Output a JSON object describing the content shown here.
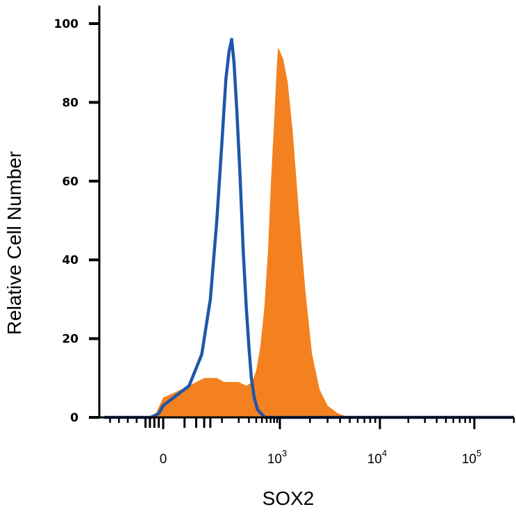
{
  "chart_data": {
    "type": "area",
    "title": "",
    "xlabel": "SOX2",
    "ylabel": "Relative Cell Number",
    "x_scale": "biexponential",
    "y_ticks": [
      0,
      20,
      40,
      60,
      80,
      100
    ],
    "x_ticks": [
      {
        "value": 0,
        "base": "0",
        "exp": ""
      },
      {
        "value": 1000,
        "base": "10",
        "exp": "3"
      },
      {
        "value": 10000,
        "base": "10",
        "exp": "4"
      },
      {
        "value": 100000,
        "base": "10",
        "exp": "5"
      }
    ],
    "ylim": [
      0,
      105
    ],
    "series": [
      {
        "style": "filled",
        "color": "#F4811F",
        "points": [
          [
            -200,
            0
          ],
          [
            -60,
            0
          ],
          [
            -25,
            1
          ],
          [
            0,
            5
          ],
          [
            20,
            8
          ],
          [
            45,
            10
          ],
          [
            80,
            10
          ],
          [
            110,
            9
          ],
          [
            150,
            9
          ],
          [
            200,
            9
          ],
          [
            270,
            8
          ],
          [
            340,
            9
          ],
          [
            400,
            12
          ],
          [
            470,
            18
          ],
          [
            550,
            28
          ],
          [
            630,
            42
          ],
          [
            710,
            60
          ],
          [
            800,
            75
          ],
          [
            880,
            88
          ],
          [
            930,
            94
          ],
          [
            1000,
            93
          ],
          [
            1080,
            91
          ],
          [
            1200,
            85
          ],
          [
            1350,
            72
          ],
          [
            1550,
            52
          ],
          [
            1800,
            32
          ],
          [
            2100,
            16
          ],
          [
            2500,
            7
          ],
          [
            3000,
            3
          ],
          [
            3800,
            1
          ],
          [
            5000,
            0
          ],
          [
            200000,
            0
          ]
        ]
      },
      {
        "style": "line",
        "color": "#1F56A8",
        "points": [
          [
            -200,
            0
          ],
          [
            -40,
            0
          ],
          [
            -15,
            1
          ],
          [
            0,
            3
          ],
          [
            20,
            8
          ],
          [
            40,
            16
          ],
          [
            60,
            30
          ],
          [
            80,
            50
          ],
          [
            100,
            70
          ],
          [
            118,
            86
          ],
          [
            135,
            93
          ],
          [
            150,
            96
          ],
          [
            165,
            90
          ],
          [
            185,
            78
          ],
          [
            210,
            62
          ],
          [
            240,
            42
          ],
          [
            270,
            28
          ],
          [
            300,
            18
          ],
          [
            330,
            10
          ],
          [
            370,
            5
          ],
          [
            420,
            2
          ],
          [
            480,
            1
          ],
          [
            560,
            0
          ],
          [
            200000,
            0
          ]
        ]
      }
    ]
  }
}
